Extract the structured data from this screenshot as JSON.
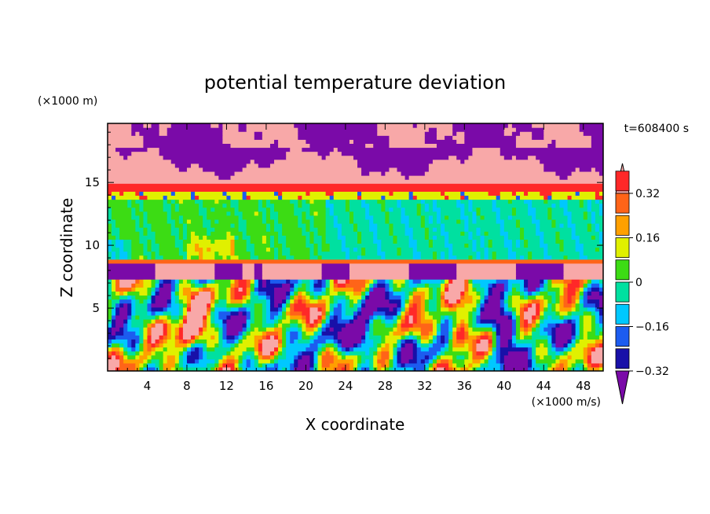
{
  "chart_data": {
    "type": "heatmap",
    "title": "potential temperature deviation",
    "xlabel": "X coordinate",
    "ylabel": "Z coordinate",
    "x_unit": "(×1000 m/s)",
    "y_unit": "(×1000 m)",
    "time_label": "t=608400 s",
    "xlim": [
      0,
      50
    ],
    "ylim": [
      0,
      19.7
    ],
    "x_ticks": [
      4,
      8,
      12,
      16,
      20,
      24,
      28,
      32,
      36,
      40,
      44,
      48
    ],
    "x_tick_labels": [
      "4",
      "8",
      "12",
      "16",
      "20",
      "24",
      "28",
      "32",
      "36",
      "40",
      "44",
      "48"
    ],
    "y_ticks": [
      5,
      10,
      15
    ],
    "y_tick_labels": [
      "5",
      "10",
      "15"
    ],
    "colorbar": {
      "levels": [
        -0.4,
        -0.32,
        -0.24,
        -0.16,
        -0.08,
        0,
        0.08,
        0.16,
        0.24,
        0.32,
        0.4
      ],
      "colors": [
        "#7a0aa8",
        "#1810a8",
        "#1c5cf0",
        "#00c8ff",
        "#00e0a0",
        "#3cdc14",
        "#e0f000",
        "#ffa000",
        "#ff6418",
        "#ff2828",
        "#f8a8a8"
      ],
      "tick_values": [
        0.32,
        0.16,
        0,
        -0.16,
        -0.32
      ],
      "tick_labels": [
        "0.32",
        "0.16",
        "0",
        "−0.16",
        "−0.32"
      ]
    },
    "grid": false,
    "legend": "colorbar right"
  }
}
